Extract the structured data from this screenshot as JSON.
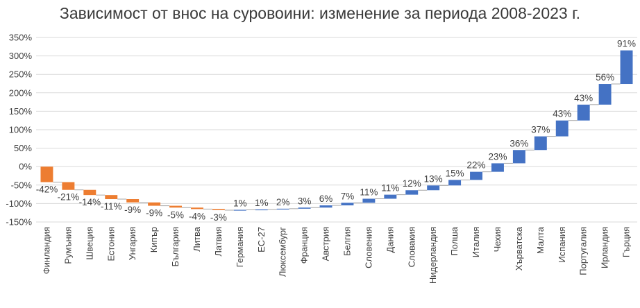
{
  "chart_data": {
    "type": "bar",
    "subtype": "waterfall",
    "title": "Зависимост от внос на суровоини: изменение за периода 2008-2023 г.",
    "xlabel": "",
    "ylabel": "",
    "ylim": [
      -150,
      350
    ],
    "yticks": [
      "350%",
      "300%",
      "250%",
      "200%",
      "150%",
      "100%",
      "50%",
      "0%",
      "-50%",
      "-100%",
      "-150%"
    ],
    "ytick_values": [
      350,
      300,
      250,
      200,
      150,
      100,
      50,
      0,
      -50,
      -100,
      -150
    ],
    "grid": true,
    "legend": false,
    "colors": {
      "decrease": "#ED7D31",
      "increase": "#4472C4",
      "grid": "#d9d9d9",
      "connector": "#a6a6a6"
    },
    "categories": [
      "Финландия",
      "Румъния",
      "Швеция",
      "Естония",
      "Унгария",
      "Кипър",
      "България",
      "Литва",
      "Латвия",
      "Германия",
      "ЕС-27",
      "Люксембург",
      "Франция",
      "Австрия",
      "Белгия",
      "Словения",
      "Дания",
      "Словакия",
      "Нидерландия",
      "Полша",
      "Италия",
      "Чехия",
      "Хърватска",
      "Малта",
      "Испания",
      "Португалия",
      "Ирландия",
      "Гърция"
    ],
    "values": [
      -42,
      -21,
      -14,
      -11,
      -9,
      -9,
      -5,
      -4,
      -3,
      1,
      1,
      2,
      3,
      6,
      7,
      11,
      11,
      12,
      13,
      15,
      22,
      23,
      36,
      37,
      43,
      43,
      56,
      91
    ],
    "labels": [
      "-42%",
      "-21%",
      "-14%",
      "-11%",
      "-9%",
      "-9%",
      "-5%",
      "-4%",
      "-3%",
      "1%",
      "1%",
      "2%",
      "3%",
      "6%",
      "7%",
      "11%",
      "11%",
      "12%",
      "13%",
      "15%",
      "22%",
      "23%",
      "36%",
      "37%",
      "43%",
      "43%",
      "56%",
      "91%"
    ]
  }
}
